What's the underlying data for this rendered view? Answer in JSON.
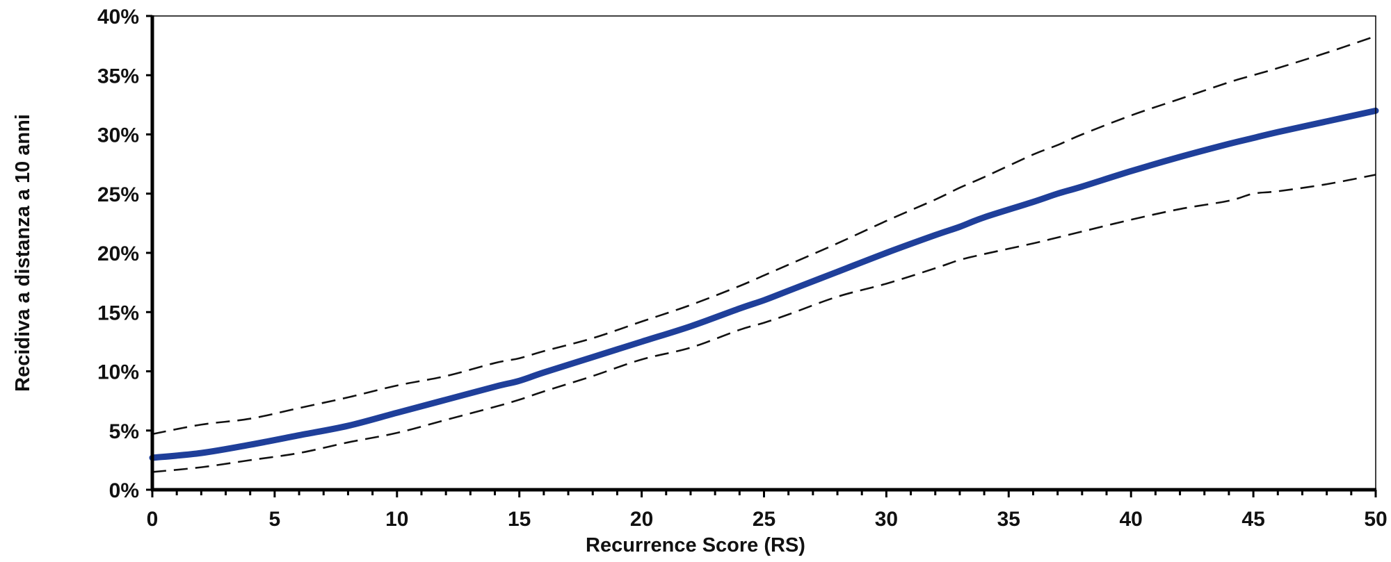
{
  "chart_data": {
    "type": "line",
    "title": "",
    "xlabel": "Recurrence Score (RS)",
    "ylabel": "Recidiva a distanza a 10 anni",
    "xlim": [
      0,
      50
    ],
    "ylim": [
      0,
      40
    ],
    "x_ticks": [
      "0",
      "5",
      "10",
      "15",
      "20",
      "25",
      "30",
      "35",
      "40",
      "45",
      "50"
    ],
    "y_ticks": [
      "0%",
      "5%",
      "10%",
      "15%",
      "20%",
      "25%",
      "30%",
      "35%",
      "40%"
    ],
    "grid": false,
    "legend": "none",
    "x": [
      0,
      2,
      4,
      6,
      8,
      10,
      12,
      14,
      15,
      16,
      18,
      20,
      22,
      24,
      25,
      26,
      28,
      30,
      32,
      33,
      34,
      36,
      37,
      38,
      40,
      42,
      44,
      45,
      46,
      48,
      50
    ],
    "series": [
      {
        "style": "solid",
        "color": "#1f3f9a",
        "values": [
          2.7,
          3.1,
          3.8,
          4.6,
          5.4,
          6.5,
          7.6,
          8.7,
          9.2,
          9.9,
          11.2,
          12.5,
          13.8,
          15.3,
          16.0,
          16.8,
          18.4,
          20.0,
          21.5,
          22.2,
          23.0,
          24.3,
          25.0,
          25.6,
          26.9,
          28.1,
          29.2,
          29.7,
          30.2,
          31.1,
          32.0
        ]
      },
      {
        "style": "dashed",
        "color": "#111111",
        "values": [
          4.7,
          5.5,
          6.0,
          6.9,
          7.8,
          8.8,
          9.6,
          10.7,
          11.1,
          11.7,
          12.8,
          14.2,
          15.6,
          17.2,
          18.1,
          19.0,
          20.8,
          22.7,
          24.5,
          25.5,
          26.4,
          28.3,
          29.1,
          30.0,
          31.6,
          33.0,
          34.4,
          35.0,
          35.6,
          36.9,
          38.3
        ]
      },
      {
        "style": "dashed",
        "color": "#111111",
        "values": [
          1.5,
          1.9,
          2.5,
          3.1,
          4.0,
          4.8,
          5.9,
          7.0,
          7.6,
          8.3,
          9.6,
          11.0,
          12.0,
          13.5,
          14.1,
          14.8,
          16.3,
          17.4,
          18.7,
          19.4,
          19.9,
          20.8,
          21.3,
          21.8,
          22.8,
          23.7,
          24.4,
          25.0,
          25.2,
          25.8,
          26.6
        ]
      }
    ]
  }
}
